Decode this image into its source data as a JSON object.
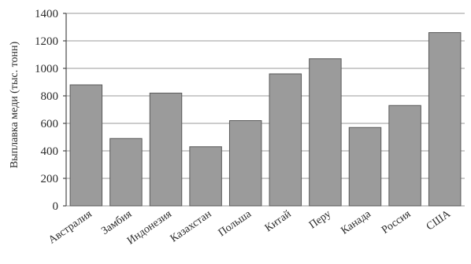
{
  "chart_data": {
    "type": "bar",
    "title": "",
    "xlabel": "",
    "ylabel": "Выплавка меди (тыс. тонн)",
    "categories": [
      "Австралия",
      "Замбия",
      "Индонезия",
      "Казахстан",
      "Польша",
      "Китай",
      "Перу",
      "Канада",
      "Россия",
      "США"
    ],
    "values": [
      880,
      490,
      820,
      430,
      620,
      960,
      1070,
      570,
      730,
      1260
    ],
    "ylim": [
      0,
      1400
    ],
    "yticks": [
      0,
      200,
      400,
      600,
      800,
      1000,
      1200,
      1400
    ],
    "grid": true,
    "colors": {
      "bar_fill": "#9b9b9b",
      "bar_stroke": "#5a5a5a",
      "grid": "#9a9a9a"
    }
  }
}
